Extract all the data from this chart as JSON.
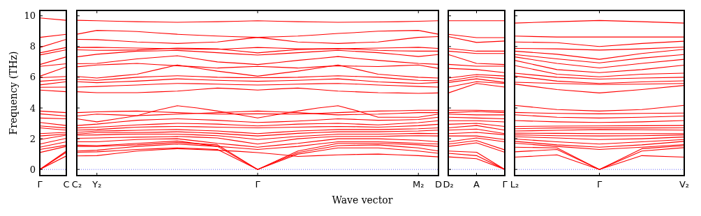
{
  "chart_data": [
    {
      "type": "line",
      "ylabel": "Frequency (THz)",
      "categories": [
        "Γ",
        "C"
      ],
      "ylim": [
        -0.4,
        10.35
      ],
      "yticks": [
        0,
        2,
        4,
        6,
        8,
        10
      ],
      "ref_lines": [
        {
          "axis": "y",
          "value": 0,
          "color": "#0000ff",
          "line_style": "dotted"
        }
      ],
      "series": [
        {
          "color": "#ff0000",
          "values": [
            0,
            0.88
          ]
        },
        {
          "color": "#ff0000",
          "values": [
            0,
            1.12
          ]
        },
        {
          "color": "#ff0000",
          "values": [
            0,
            1.2
          ]
        },
        {
          "color": "#ff0000",
          "values": [
            1.1,
            1.5
          ]
        },
        {
          "color": "#ff0000",
          "values": [
            1.3,
            1.58
          ]
        },
        {
          "color": "#ff0000",
          "values": [
            1.45,
            1.8
          ]
        },
        {
          "color": "#ff0000",
          "values": [
            1.65,
            2.03
          ]
        },
        {
          "color": "#ff0000",
          "values": [
            1.95,
            2.23
          ]
        },
        {
          "color": "#ff0000",
          "values": [
            2.18,
            2.3
          ]
        },
        {
          "color": "#ff0000",
          "values": [
            2.33,
            2.41
          ]
        },
        {
          "color": "#ff0000",
          "values": [
            2.71,
            2.56
          ]
        },
        {
          "color": "#ff0000",
          "values": [
            2.83,
            2.7
          ]
        },
        {
          "color": "#ff0000",
          "values": [
            3.06,
            2.86
          ]
        },
        {
          "color": "#ff0000",
          "values": [
            3.35,
            3.3
          ]
        },
        {
          "color": "#ff0000",
          "values": [
            3.62,
            3.48
          ]
        },
        {
          "color": "#ff0000",
          "values": [
            3.8,
            3.7
          ]
        },
        {
          "color": "#ff0000",
          "values": [
            5.17,
            5.06
          ]
        },
        {
          "color": "#ff0000",
          "values": [
            5.35,
            5.36
          ]
        },
        {
          "color": "#ff0000",
          "values": [
            5.5,
            5.71
          ]
        },
        {
          "color": "#ff0000",
          "values": [
            5.74,
            5.86
          ]
        },
        {
          "color": "#ff0000",
          "values": [
            5.97,
            6.05
          ]
        },
        {
          "color": "#ff0000",
          "values": [
            6.07,
            6.68
          ]
        },
        {
          "color": "#ff0000",
          "values": [
            6.71,
            6.88
          ]
        },
        {
          "color": "#ff0000",
          "values": [
            6.83,
            7.33
          ]
        },
        {
          "color": "#ff0000",
          "values": [
            7.45,
            7.79
          ]
        },
        {
          "color": "#ff0000",
          "values": [
            7.59,
            7.94
          ]
        },
        {
          "color": "#ff0000",
          "values": [
            7.94,
            8.47
          ]
        },
        {
          "color": "#ff0000",
          "values": [
            8.6,
            8.8
          ]
        },
        {
          "color": "#ff0000",
          "values": [
            9.86,
            9.71
          ]
        }
      ]
    },
    {
      "type": "line",
      "xlabel": "Wave vector",
      "categories": [
        "C₂",
        "Y₂",
        null,
        null,
        null,
        null,
        null,
        null,
        null,
        "Γ",
        null,
        null,
        null,
        null,
        null,
        null,
        null,
        "M₂",
        "D"
      ],
      "ylim": [
        -0.4,
        10.35
      ],
      "yticks": [
        0,
        2,
        4,
        6,
        8,
        10
      ],
      "tick_labels": "x",
      "ref_lines": [
        {
          "axis": "y",
          "value": 0,
          "color": "#0000ff",
          "line_style": "dotted"
        }
      ],
      "series": [
        {
          "color": "#ff0000",
          "values": [
            9.71,
            9.68,
            9.65,
            9.62,
            9.6,
            9.58,
            9.6,
            9.62,
            9.65,
            9.68,
            9.65,
            9.62,
            9.6,
            9.58,
            9.59,
            9.6,
            9.62,
            9.65,
            9.68
          ]
        },
        {
          "color": "#ff0000",
          "values": [
            8.8,
            9.05,
            9.02,
            8.98,
            8.89,
            8.8,
            8.74,
            8.68,
            8.64,
            8.6,
            8.64,
            8.68,
            8.76,
            8.85,
            8.92,
            9.0,
            9.03,
            9.05,
            8.8
          ]
        },
        {
          "color": "#ff0000",
          "values": [
            8.47,
            8.45,
            8.38,
            8.3,
            8.25,
            8.2,
            8.25,
            8.3,
            8.45,
            8.6,
            8.45,
            8.3,
            8.25,
            8.2,
            8.25,
            8.3,
            8.45,
            8.6,
            8.65
          ]
        },
        {
          "color": "#ff0000",
          "values": [
            7.94,
            7.95,
            7.92,
            7.9,
            7.88,
            7.85,
            7.84,
            7.82,
            7.88,
            7.94,
            7.9,
            7.85,
            7.85,
            7.85,
            7.88,
            7.9,
            7.92,
            7.95,
            7.88
          ]
        },
        {
          "color": "#ff0000",
          "values": [
            7.79,
            7.75,
            7.76,
            7.78,
            7.84,
            7.9,
            7.88,
            7.85,
            7.72,
            7.59,
            7.7,
            7.8,
            7.84,
            7.88,
            7.82,
            7.75,
            7.72,
            7.7,
            7.7
          ]
        },
        {
          "color": "#ff0000",
          "values": [
            7.33,
            7.5,
            7.6,
            7.7,
            7.72,
            7.75,
            7.68,
            7.6,
            7.52,
            7.45,
            7.52,
            7.6,
            7.68,
            7.75,
            7.68,
            7.6,
            7.48,
            7.35,
            7.48
          ]
        },
        {
          "color": "#ff0000",
          "values": [
            6.88,
            6.9,
            7.05,
            7.2,
            7.3,
            7.4,
            7.2,
            7.0,
            6.92,
            6.83,
            6.96,
            7.1,
            7.22,
            7.35,
            7.22,
            7.1,
            7.0,
            6.9,
            6.84
          ]
        },
        {
          "color": "#ff0000",
          "values": [
            6.68,
            6.8,
            6.85,
            6.9,
            6.82,
            6.75,
            6.68,
            6.6,
            6.66,
            6.71,
            6.66,
            6.6,
            6.68,
            6.75,
            6.72,
            6.7,
            6.75,
            6.8,
            6.58
          ]
        },
        {
          "color": "#ff0000",
          "values": [
            6.05,
            5.95,
            6.08,
            6.2,
            6.5,
            6.8,
            6.6,
            6.4,
            6.24,
            6.07,
            6.24,
            6.4,
            6.6,
            6.8,
            6.5,
            6.2,
            6.1,
            6.0,
            5.95
          ]
        },
        {
          "color": "#ff0000",
          "values": [
            5.86,
            5.8,
            5.9,
            6.0,
            6.05,
            6.1,
            6.05,
            6.0,
            5.98,
            5.97,
            5.98,
            6.0,
            6.05,
            6.1,
            6.05,
            6.0,
            5.9,
            5.8,
            5.77
          ]
        },
        {
          "color": "#ff0000",
          "values": [
            5.71,
            5.65,
            5.7,
            5.75,
            5.82,
            5.9,
            5.85,
            5.8,
            5.77,
            5.74,
            5.77,
            5.8,
            5.85,
            5.9,
            5.8,
            5.7,
            5.65,
            5.6,
            5.66
          ]
        },
        {
          "color": "#ff0000",
          "values": [
            5.36,
            5.4,
            5.45,
            5.5,
            5.55,
            5.6,
            5.58,
            5.55,
            5.52,
            5.5,
            5.52,
            5.55,
            5.58,
            5.6,
            5.55,
            5.5,
            5.45,
            5.4,
            5.36
          ]
        },
        {
          "color": "#ff0000",
          "values": [
            5.06,
            5.0,
            5.0,
            5.0,
            5.05,
            5.1,
            5.2,
            5.3,
            5.24,
            5.17,
            5.24,
            5.3,
            5.2,
            5.1,
            5.05,
            5.0,
            4.98,
            4.95,
            4.98
          ]
        },
        {
          "color": "#ff0000",
          "values": [
            3.7,
            3.75,
            3.78,
            3.8,
            3.75,
            3.7,
            3.65,
            3.6,
            3.61,
            3.62,
            3.61,
            3.6,
            3.65,
            3.7,
            3.75,
            3.8,
            3.82,
            3.85,
            3.85
          ]
        },
        {
          "color": "#ff0000",
          "values": [
            3.48,
            3.6,
            3.55,
            3.5,
            3.55,
            3.6,
            3.65,
            3.7,
            3.75,
            3.8,
            3.75,
            3.7,
            3.62,
            3.55,
            3.58,
            3.6,
            3.65,
            3.7,
            3.7
          ]
        },
        {
          "color": "#ff0000",
          "values": [
            3.3,
            3.1,
            3.3,
            3.5,
            3.85,
            4.15,
            4.0,
            3.8,
            3.58,
            3.35,
            3.58,
            3.8,
            4.0,
            4.15,
            3.8,
            3.4,
            3.4,
            3.4,
            3.6
          ]
        },
        {
          "color": "#ff0000",
          "values": [
            2.86,
            2.95,
            3.08,
            3.2,
            3.25,
            3.3,
            3.25,
            3.2,
            3.13,
            3.06,
            3.1,
            3.15,
            3.22,
            3.3,
            3.25,
            3.2,
            3.22,
            3.25,
            3.4
          ]
        },
        {
          "color": "#ff0000",
          "values": [
            2.7,
            2.75,
            2.82,
            2.9,
            2.95,
            3.0,
            2.98,
            2.95,
            2.89,
            2.83,
            2.89,
            2.95,
            2.98,
            3.0,
            2.95,
            2.9,
            2.98,
            3.05,
            3.17
          ]
        },
        {
          "color": "#ff0000",
          "values": [
            2.56,
            2.6,
            2.68,
            2.75,
            2.78,
            2.8,
            2.78,
            2.75,
            2.73,
            2.71,
            2.73,
            2.75,
            2.78,
            2.8,
            2.78,
            2.75,
            2.8,
            2.85,
            2.94
          ]
        },
        {
          "color": "#ff0000",
          "values": [
            2.41,
            2.5,
            2.52,
            2.55,
            2.58,
            2.6,
            2.55,
            2.5,
            2.42,
            2.33,
            2.42,
            2.5,
            2.55,
            2.6,
            2.6,
            2.6,
            2.62,
            2.65,
            2.71
          ]
        },
        {
          "color": "#ff0000",
          "values": [
            2.3,
            2.4,
            2.4,
            2.4,
            2.42,
            2.45,
            2.4,
            2.35,
            2.26,
            2.18,
            2.26,
            2.35,
            2.4,
            2.45,
            2.45,
            2.45,
            2.48,
            2.5,
            2.56
          ]
        },
        {
          "color": "#ff0000",
          "values": [
            2.23,
            2.25,
            2.28,
            2.3,
            2.3,
            2.3,
            2.25,
            2.2,
            2.08,
            1.95,
            2.05,
            2.15,
            2.22,
            2.3,
            2.3,
            2.3,
            2.32,
            2.35,
            2.33
          ]
        },
        {
          "color": "#ff0000",
          "values": [
            2.03,
            2.05,
            2.08,
            2.1,
            2.12,
            2.15,
            2.1,
            2.05,
            1.85,
            1.65,
            1.82,
            2.0,
            2.08,
            2.15,
            2.15,
            2.15,
            2.18,
            2.2,
            2.18
          ]
        },
        {
          "color": "#ff0000",
          "values": [
            1.8,
            1.8,
            1.88,
            1.95,
            1.98,
            2.0,
            1.85,
            1.7,
            1.58,
            1.45,
            1.58,
            1.7,
            1.85,
            2.0,
            2.0,
            2.0,
            1.95,
            1.9,
            1.8
          ]
        },
        {
          "color": "#ff0000",
          "values": [
            1.58,
            1.55,
            1.62,
            1.7,
            1.78,
            1.85,
            1.68,
            1.5,
            1.4,
            1.3,
            1.4,
            1.5,
            1.65,
            1.8,
            1.8,
            1.8,
            1.75,
            1.7,
            1.65
          ]
        },
        {
          "color": "#ff0000",
          "values": [
            1.5,
            1.5,
            1.55,
            1.6,
            1.68,
            1.75,
            1.68,
            1.6,
            0.8,
            0,
            0.6,
            1.2,
            1.45,
            1.7,
            1.7,
            1.7,
            1.65,
            1.6,
            1.5
          ]
        },
        {
          "color": "#ff0000",
          "values": [
            1.2,
            1.25,
            1.38,
            1.5,
            1.58,
            1.65,
            1.58,
            1.5,
            0.75,
            0,
            0.55,
            1.1,
            1.32,
            1.55,
            1.58,
            1.6,
            1.5,
            1.4,
            1.2
          ]
        },
        {
          "color": "#ff0000",
          "values": [
            1.12,
            1.15,
            1.22,
            1.3,
            1.35,
            1.4,
            1.35,
            1.3,
            0.65,
            0,
            0.5,
            1.0,
            1.2,
            1.4,
            1.4,
            1.4,
            1.3,
            1.2,
            1.05
          ]
        },
        {
          "color": "#ff0000",
          "values": [
            0.88,
            0.9,
            1.05,
            1.2,
            1.28,
            1.35,
            1.3,
            1.25,
            1.18,
            1.1,
            0.98,
            0.85,
            0.9,
            0.95,
            0.98,
            1.0,
            0.95,
            0.9,
            0.82
          ]
        }
      ]
    },
    {
      "type": "line",
      "categories": [
        "D₂",
        "A",
        "Γ"
      ],
      "ylim": [
        -0.4,
        10.35
      ],
      "yticks": [
        0,
        2,
        4,
        6,
        8,
        10
      ],
      "tick_labels": "x",
      "ref_lines": [
        {
          "axis": "y",
          "value": 0,
          "color": "#0000ff",
          "line_style": "dotted"
        }
      ],
      "series": [
        {
          "color": "#ff0000",
          "values": [
            4.98,
            5.6,
            5.36
          ]
        },
        {
          "color": "#ff0000",
          "values": [
            5.36,
            5.71,
            5.6
          ]
        },
        {
          "color": "#ff0000",
          "values": [
            5.66,
            5.9,
            5.66
          ]
        },
        {
          "color": "#ff0000",
          "values": [
            5.77,
            6.05,
            5.9
          ]
        },
        {
          "color": "#ff0000",
          "values": [
            5.95,
            6.18,
            6.08
          ]
        },
        {
          "color": "#ff0000",
          "values": [
            6.58,
            6.5,
            6.3
          ]
        },
        {
          "color": "#ff0000",
          "values": [
            6.84,
            6.72,
            6.72
          ]
        },
        {
          "color": "#ff0000",
          "values": [
            7.48,
            6.9,
            6.83
          ]
        },
        {
          "color": "#ff0000",
          "values": [
            7.7,
            7.55,
            7.55
          ]
        },
        {
          "color": "#ff0000",
          "values": [
            7.88,
            7.7,
            7.7
          ]
        },
        {
          "color": "#ff0000",
          "values": [
            8.65,
            8.27,
            8.36
          ]
        },
        {
          "color": "#ff0000",
          "values": [
            8.8,
            8.58,
            8.58
          ]
        },
        {
          "color": "#ff0000",
          "values": [
            9.68,
            9.68,
            9.68
          ]
        },
        {
          "color": "#ff0000",
          "values": [
            0.82,
            0.7,
            0
          ]
        },
        {
          "color": "#ff0000",
          "values": [
            1.05,
            0.9,
            0
          ]
        },
        {
          "color": "#ff0000",
          "values": [
            1.2,
            1.12,
            0
          ]
        },
        {
          "color": "#ff0000",
          "values": [
            1.5,
            1.73,
            1.12
          ]
        },
        {
          "color": "#ff0000",
          "values": [
            1.65,
            1.88,
            1.27
          ]
        },
        {
          "color": "#ff0000",
          "values": [
            1.8,
            2.05,
            1.8
          ]
        },
        {
          "color": "#ff0000",
          "values": [
            2.18,
            2.18,
            1.95
          ]
        },
        {
          "color": "#ff0000",
          "values": [
            2.33,
            2.41,
            2.26
          ]
        },
        {
          "color": "#ff0000",
          "values": [
            2.56,
            2.63,
            2.33
          ]
        },
        {
          "color": "#ff0000",
          "values": [
            2.71,
            2.86,
            2.56
          ]
        },
        {
          "color": "#ff0000",
          "values": [
            2.94,
            3.0,
            2.8
          ]
        },
        {
          "color": "#ff0000",
          "values": [
            3.17,
            3.17,
            3.09
          ]
        },
        {
          "color": "#ff0000",
          "values": [
            3.4,
            3.35,
            3.3
          ]
        },
        {
          "color": "#ff0000",
          "values": [
            3.6,
            3.55,
            3.55
          ]
        },
        {
          "color": "#ff0000",
          "values": [
            3.7,
            3.77,
            3.7
          ]
        },
        {
          "color": "#ff0000",
          "values": [
            3.85,
            3.85,
            3.8
          ]
        }
      ]
    },
    {
      "type": "line",
      "categories": [
        "L₂",
        null,
        "Γ",
        null,
        "V₂"
      ],
      "ylim": [
        -0.4,
        10.35
      ],
      "yticks": [
        0,
        2,
        4,
        6,
        8,
        10
      ],
      "tick_labels": "x",
      "ref_lines": [
        {
          "axis": "y",
          "value": 0,
          "color": "#0000ff",
          "line_style": "dotted"
        }
      ],
      "series": [
        {
          "color": "#ff0000",
          "values": [
            9.53,
            9.62,
            9.7,
            9.62,
            9.53
          ]
        },
        {
          "color": "#ff0000",
          "values": [
            8.68,
            8.62,
            8.62,
            8.62,
            8.62
          ]
        },
        {
          "color": "#ff0000",
          "values": [
            8.3,
            8.25,
            8.0,
            8.2,
            8.35
          ]
        },
        {
          "color": "#ff0000",
          "values": [
            7.88,
            7.85,
            7.77,
            7.85,
            7.97
          ]
        },
        {
          "color": "#ff0000",
          "values": [
            7.7,
            7.5,
            7.17,
            7.55,
            7.82
          ]
        },
        {
          "color": "#ff0000",
          "values": [
            7.48,
            7.2,
            6.94,
            7.25,
            7.48
          ]
        },
        {
          "color": "#ff0000",
          "values": [
            7.33,
            6.9,
            6.61,
            6.9,
            7.17
          ]
        },
        {
          "color": "#ff0000",
          "values": [
            7.1,
            6.5,
            6.3,
            6.5,
            6.79
          ]
        },
        {
          "color": "#ff0000",
          "values": [
            6.77,
            6.2,
            6.03,
            6.2,
            6.27
          ]
        },
        {
          "color": "#ff0000",
          "values": [
            6.27,
            6.0,
            5.88,
            5.95,
            6.0
          ]
        },
        {
          "color": "#ff0000",
          "values": [
            6.08,
            5.75,
            5.6,
            5.7,
            5.77
          ]
        },
        {
          "color": "#ff0000",
          "values": [
            5.68,
            5.6,
            5.53,
            5.55,
            5.6
          ]
        },
        {
          "color": "#ff0000",
          "values": [
            5.56,
            5.2,
            4.98,
            5.2,
            5.47
          ]
        },
        {
          "color": "#ff0000",
          "values": [
            0.8,
            0.95,
            0,
            0.9,
            0.8
          ]
        },
        {
          "color": "#ff0000",
          "values": [
            1.15,
            1.3,
            0,
            1.2,
            1.42
          ]
        },
        {
          "color": "#ff0000",
          "values": [
            1.45,
            1.4,
            0,
            1.35,
            1.55
          ]
        },
        {
          "color": "#ff0000",
          "values": [
            1.71,
            1.5,
            1.3,
            1.45,
            1.62
          ]
        },
        {
          "color": "#ff0000",
          "values": [
            1.83,
            1.6,
            1.45,
            1.6,
            1.83
          ]
        },
        {
          "color": "#ff0000",
          "values": [
            1.98,
            1.8,
            1.65,
            1.8,
            1.95
          ]
        },
        {
          "color": "#ff0000",
          "values": [
            2.13,
            2.05,
            1.95,
            2.0,
            2.11
          ]
        },
        {
          "color": "#ff0000",
          "values": [
            2.25,
            2.2,
            2.18,
            2.2,
            2.25
          ]
        },
        {
          "color": "#ff0000",
          "values": [
            2.36,
            2.35,
            2.33,
            2.33,
            2.33
          ]
        },
        {
          "color": "#ff0000",
          "values": [
            2.5,
            2.55,
            2.6,
            2.58,
            2.56
          ]
        },
        {
          "color": "#ff0000",
          "values": [
            2.65,
            2.7,
            2.71,
            2.7,
            2.71
          ]
        },
        {
          "color": "#ff0000",
          "values": [
            2.8,
            2.82,
            2.83,
            2.85,
            2.86
          ]
        },
        {
          "color": "#ff0000",
          "values": [
            3.18,
            3.1,
            3.06,
            3.1,
            3.18
          ]
        },
        {
          "color": "#ff0000",
          "values": [
            3.56,
            3.4,
            3.35,
            3.4,
            3.48
          ]
        },
        {
          "color": "#ff0000",
          "values": [
            3.71,
            3.65,
            3.62,
            3.65,
            3.67
          ]
        },
        {
          "color": "#ff0000",
          "values": [
            4.17,
            3.9,
            3.8,
            3.9,
            4.17
          ]
        }
      ]
    }
  ]
}
